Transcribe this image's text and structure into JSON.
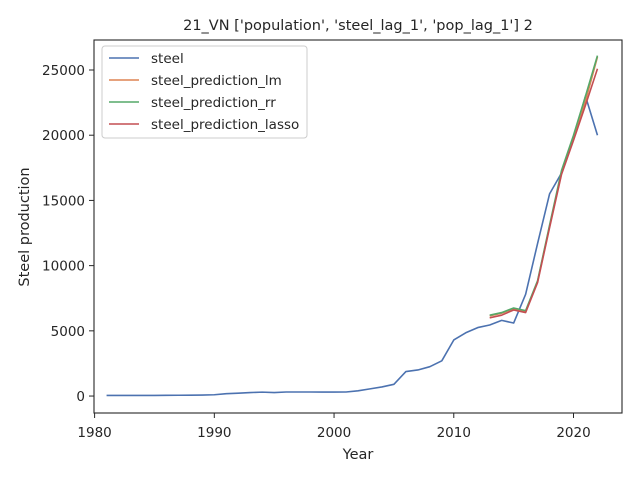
{
  "chart_data": {
    "type": "line",
    "title": "21_VN ['population', 'steel_lag_1', 'pop_lag_1'] 2",
    "xlabel": "Year",
    "ylabel": "Steel production",
    "xlim": [
      1979.95,
      2024.05
    ],
    "ylim": [
      -1300,
      27300
    ],
    "xticks": [
      1980,
      1990,
      2000,
      2010,
      2020
    ],
    "yticks": [
      0,
      5000,
      10000,
      15000,
      20000,
      25000
    ],
    "grid": false,
    "legend_position": "upper left",
    "series": [
      {
        "name": "steel",
        "color": "#4c72b0",
        "x": [
          1981,
          1982,
          1983,
          1984,
          1985,
          1986,
          1987,
          1988,
          1989,
          1990,
          1991,
          1992,
          1993,
          1994,
          1995,
          1996,
          1997,
          1998,
          1999,
          2000,
          2001,
          2002,
          2003,
          2004,
          2005,
          2006,
          2007,
          2008,
          2009,
          2010,
          2011,
          2012,
          2013,
          2014,
          2015,
          2016,
          2017,
          2018,
          2019,
          2020,
          2021,
          2022
        ],
        "y": [
          50,
          50,
          50,
          50,
          50,
          55,
          60,
          65,
          75,
          100,
          180,
          220,
          270,
          300,
          270,
          310,
          310,
          310,
          305,
          305,
          310,
          400,
          550,
          700,
          900,
          1880,
          2000,
          2250,
          2700,
          4300,
          4850,
          5250,
          5450,
          5800,
          5600,
          7800,
          11700,
          15500,
          17100,
          19700,
          23000,
          20000
        ]
      },
      {
        "name": "steel_prediction_lm",
        "color": "#dd8452",
        "x": [
          2013,
          2014,
          2015,
          2016,
          2017,
          2018,
          2019,
          2020,
          2021,
          2022
        ],
        "y": [
          6150,
          6350,
          6700,
          6500,
          8800,
          13000,
          17100,
          19700,
          22600,
          26000
        ]
      },
      {
        "name": "steel_prediction_rr",
        "color": "#55a868",
        "x": [
          2013,
          2014,
          2015,
          2016,
          2017,
          2018,
          2019,
          2020,
          2021,
          2022
        ],
        "y": [
          6200,
          6400,
          6750,
          6550,
          8850,
          13100,
          17300,
          20000,
          23000,
          26100
        ]
      },
      {
        "name": "steel_prediction_lasso",
        "color": "#c44e52",
        "x": [
          2013,
          2014,
          2015,
          2016,
          2017,
          2018,
          2019,
          2020,
          2021,
          2022
        ],
        "y": [
          6000,
          6200,
          6600,
          6400,
          8700,
          12900,
          17000,
          19600,
          22300,
          25100
        ]
      }
    ]
  }
}
